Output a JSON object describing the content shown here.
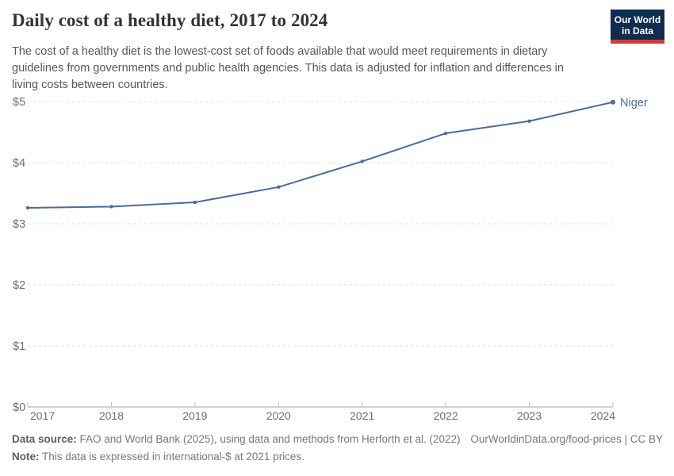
{
  "header": {
    "title": "Daily cost of a healthy diet, 2017 to 2024",
    "subtitle_lines": [
      "The cost of a healthy diet is the lowest-cost set of foods available that would meet requirements in dietary",
      "guidelines from governments and public health agencies. This data is adjusted for inflation and differences in",
      "living costs between countries."
    ]
  },
  "logo": {
    "line1": "Our World",
    "line2": "in Data",
    "bg_color": "#102d50",
    "bar_color": "#cc3b3b"
  },
  "chart_data": {
    "type": "line",
    "title": "Daily cost of a healthy diet, 2017 to 2024",
    "x": [
      2017,
      2018,
      2019,
      2020,
      2021,
      2022,
      2023,
      2024
    ],
    "series": [
      {
        "name": "Niger",
        "values": [
          3.26,
          3.28,
          3.35,
          3.6,
          4.02,
          4.48,
          4.68,
          4.99
        ]
      }
    ],
    "xlabel": "",
    "ylabel": "",
    "ylim": [
      0,
      5
    ],
    "yticks": [
      0,
      1,
      2,
      3,
      4,
      5
    ],
    "ytick_prefix": "$",
    "grid": "horizontal-dashed",
    "legend_position": "end-of-line-label",
    "end_label": "Niger",
    "line_color": "#4c6a9c",
    "grid_color": "#dcdcdc",
    "axis_color": "#a6a6a6",
    "tick_color": "#bcbcbc",
    "axis_text_color": "#6e6e6e"
  },
  "footer": {
    "data_source_label": "Data source:",
    "data_source_text": " FAO and World Bank (2025), using data and methods from Herforth et al. (2022)",
    "citation": "OurWorldinData.org/food-prices | CC BY",
    "note_label": "Note:",
    "note_text": " This data is expressed in international-$ at 2021 prices."
  }
}
